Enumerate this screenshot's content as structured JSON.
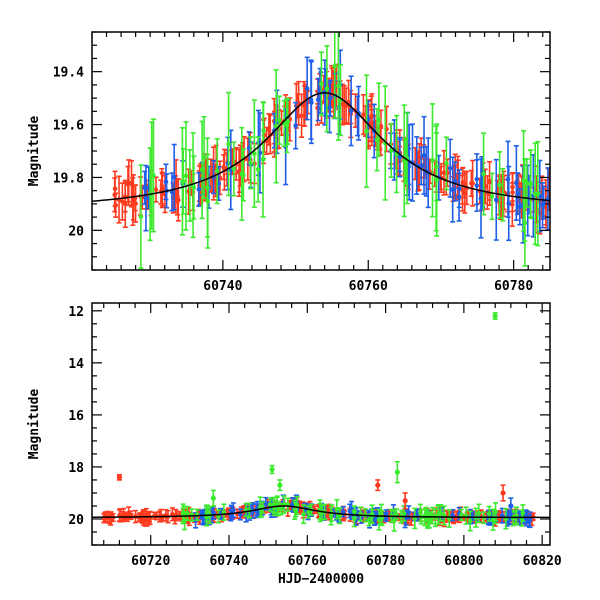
{
  "chart_data": [
    {
      "id": "top",
      "type": "scatter",
      "title": "",
      "xlabel": "",
      "ylabel": "Magnitude",
      "xlim": [
        60722,
        60785
      ],
      "ylim": [
        20.15,
        19.25
      ],
      "y_inverted": true,
      "xticks": [
        60740,
        60760,
        60780
      ],
      "xtick_labels": [
        "60740",
        "60760",
        "60780"
      ],
      "yticks": [
        19.4,
        19.6,
        19.8,
        20.0
      ],
      "ytick_labels": [
        "19.4",
        "19.6",
        "19.8",
        "20"
      ],
      "model_curve": {
        "baseline": 19.93,
        "peak_mag": 19.48,
        "peak_x": 60754,
        "width": 10
      },
      "series": [
        {
          "color": "#ff3b1f",
          "x_range": [
            60725,
            60785
          ],
          "count": 220,
          "err": [
            0.04,
            0.09
          ]
        },
        {
          "color": "#1f5fe8",
          "x_range": [
            60729,
            60785
          ],
          "count": 80,
          "err": [
            0.06,
            0.16
          ]
        },
        {
          "color": "#3dea2f",
          "x_range": [
            60728,
            60785
          ],
          "count": 60,
          "err": [
            0.08,
            0.22
          ]
        }
      ]
    },
    {
      "id": "bottom",
      "type": "scatter",
      "title": "",
      "xlabel": "HJD−2400000",
      "ylabel": "Magnitude",
      "xlim": [
        60705,
        60822
      ],
      "ylim": [
        21,
        11.7
      ],
      "y_inverted": true,
      "xticks": [
        60720,
        60740,
        60760,
        60780,
        60800,
        60820
      ],
      "xtick_labels": [
        "60720",
        "60740",
        "60760",
        "60780",
        "60800",
        "60820"
      ],
      "yticks": [
        12,
        14,
        16,
        18,
        20
      ],
      "ytick_labels": [
        "12",
        "14",
        "16",
        "18",
        "20"
      ],
      "model_curve": {
        "baseline": 19.95,
        "peak_mag": 19.5,
        "peak_x": 60754,
        "width": 10
      },
      "series": [
        {
          "color": "#ff3b1f",
          "x_range": [
            60708,
            60818
          ],
          "count": 320,
          "err": [
            0.1,
            0.25
          ]
        },
        {
          "color": "#1f5fe8",
          "x_range": [
            60729,
            60818
          ],
          "count": 110,
          "err": [
            0.15,
            0.3
          ]
        },
        {
          "color": "#3dea2f",
          "x_range": [
            60728,
            60818
          ],
          "count": 90,
          "err": [
            0.2,
            0.4
          ]
        }
      ],
      "outliers": [
        {
          "x": 60712,
          "y": 18.4,
          "color": "#ff3b1f",
          "err": 0.1
        },
        {
          "x": 60751,
          "y": 18.1,
          "color": "#3dea2f",
          "err": 0.15
        },
        {
          "x": 60753,
          "y": 18.7,
          "color": "#3dea2f",
          "err": 0.2
        },
        {
          "x": 60736,
          "y": 19.2,
          "color": "#3dea2f",
          "err": 0.3
        },
        {
          "x": 60778,
          "y": 18.7,
          "color": "#ff3b1f",
          "err": 0.2
        },
        {
          "x": 60783,
          "y": 18.2,
          "color": "#3dea2f",
          "err": 0.4
        },
        {
          "x": 60785,
          "y": 19.3,
          "color": "#ff3b1f",
          "err": 0.3
        },
        {
          "x": 60808,
          "y": 12.2,
          "color": "#3dea2f",
          "err": 0.12
        },
        {
          "x": 60810,
          "y": 19.0,
          "color": "#ff3b1f",
          "err": 0.3
        },
        {
          "x": 60812,
          "y": 19.5,
          "color": "#1f5fe8",
          "err": 0.3
        }
      ]
    }
  ]
}
